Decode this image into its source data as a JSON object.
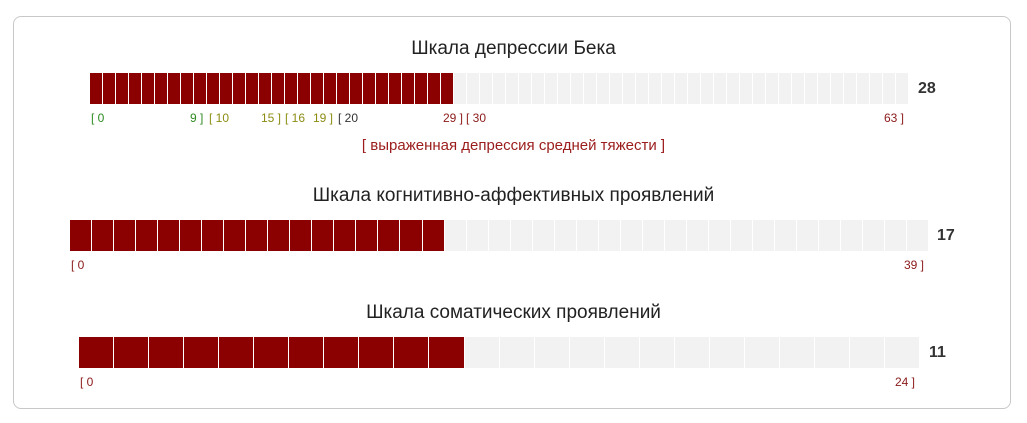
{
  "colors": {
    "filled": "#8b0000",
    "empty": "#f2f2f2",
    "mild": "#2e8b22",
    "moderate_low": "#8c8c14",
    "severe": "#8b1a1a"
  },
  "scales": [
    {
      "title": "Шкала депрессии Бека",
      "score": "28",
      "max": 63,
      "value": 28,
      "ranges": [
        "[ 0",
        "9 ]",
        "[ 10",
        "15 ]",
        "[ 16",
        "19 ]",
        "[ 20",
        "29 ]",
        "[ 30",
        "63 ]"
      ],
      "interpretation": "[ выраженная депрессия средней тяжести ]"
    },
    {
      "title": "Шкала когнитивно-аффективных проявлений",
      "score": "17",
      "max": 39,
      "value": 17,
      "ranges": [
        "[ 0",
        "39 ]"
      ]
    },
    {
      "title": "Шкала соматических проявлений",
      "score": "11",
      "max": 24,
      "value": 11,
      "ranges": [
        "[ 0",
        "24 ]"
      ]
    }
  ]
}
